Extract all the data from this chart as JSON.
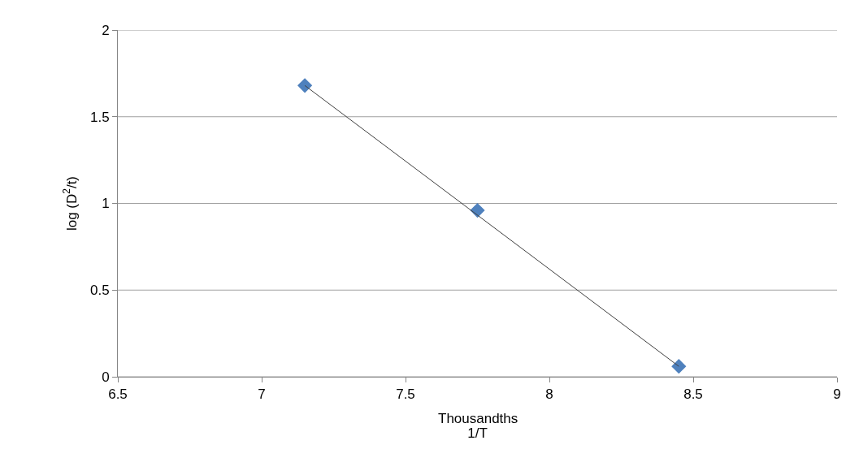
{
  "chart_data": {
    "type": "scatter",
    "xlabel": "1/T",
    "ylabel": "log (D$^{2}$/t)",
    "annotations": [
      "Thousandths"
    ],
    "series": [
      {
        "color": "#4f81bd",
        "marker": "diamond",
        "x": [
          7.15,
          7.75,
          8.45
        ],
        "values": [
          1.68,
          0.96,
          0.06
        ]
      },
      {
        "type": "line",
        "color": "#404040",
        "marker": "none",
        "x": [
          7.15,
          8.45
        ],
        "values": [
          1.68,
          0.06
        ]
      }
    ],
    "xlim": [
      6.5,
      9
    ],
    "xticks": [
      6.5,
      7,
      7.5,
      8,
      8.5,
      9
    ],
    "ylim": [
      0,
      2
    ],
    "yticks": [
      0,
      0.5,
      1,
      1.5,
      2
    ],
    "grid": "y"
  }
}
